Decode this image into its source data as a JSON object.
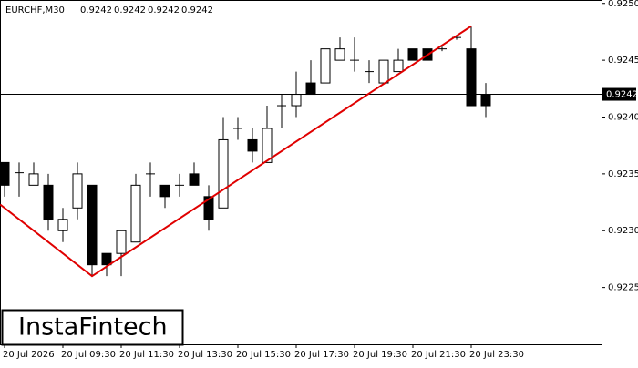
{
  "chart_data": {
    "type": "candlestick",
    "title": "EURCHF,M30",
    "header_values": [
      "0.9242",
      "0.9242",
      "0.9242",
      "0.9242"
    ],
    "brand": "InstaFintech",
    "categories": [
      "20 Jul 2026",
      null,
      null,
      null,
      "20 Jul 09:30",
      null,
      null,
      null,
      "20 Jul 11:30",
      null,
      null,
      null,
      "20 Jul 13:30",
      null,
      null,
      null,
      "20 Jul 15:30",
      null,
      null,
      null,
      "20 Jul 17:30",
      null,
      null,
      null,
      "20 Jul 19:30",
      null,
      null,
      null,
      "20 Jul 21:30",
      null,
      null,
      null,
      "20 Jul 23:30",
      null
    ],
    "open": [
      0.9236,
      0.92351,
      0.9234,
      0.9234,
      0.923,
      0.9232,
      0.9234,
      0.9228,
      0.9228,
      0.9229,
      0.9235,
      0.9234,
      0.9234,
      0.9235,
      0.9233,
      0.9232,
      0.9239,
      0.9238,
      0.9236,
      0.9241,
      0.9241,
      0.9243,
      0.9243,
      0.9245,
      0.9245,
      0.9244,
      0.9243,
      0.9244,
      0.9246,
      0.9246,
      0.9246,
      0.9247,
      0.9246,
      0.9242
    ],
    "high": [
      0.9236,
      0.9236,
      0.9236,
      0.9235,
      0.9232,
      0.9236,
      0.9234,
      0.9228,
      0.923,
      0.9235,
      0.9236,
      0.9234,
      0.9235,
      0.9236,
      0.9234,
      0.924,
      0.924,
      0.9239,
      0.9241,
      0.9242,
      0.9244,
      0.9245,
      0.9246,
      0.9247,
      0.9247,
      0.9245,
      0.9245,
      0.9246,
      0.9246,
      0.9246,
      0.92462,
      0.92472,
      0.9248,
      0.9243
    ],
    "low": [
      0.9233,
      0.9233,
      0.9234,
      0.923,
      0.9229,
      0.9231,
      0.9226,
      0.9226,
      0.9226,
      0.9229,
      0.9233,
      0.9232,
      0.9233,
      0.9234,
      0.923,
      0.9232,
      0.9238,
      0.9236,
      0.9236,
      0.9239,
      0.924,
      0.9242,
      0.9243,
      0.9245,
      0.9244,
      0.9243,
      0.9243,
      0.9244,
      0.9245,
      0.9245,
      0.92458,
      0.92468,
      0.9241,
      0.924
    ],
    "close": [
      0.9234,
      0.92351,
      0.9235,
      0.9231,
      0.9231,
      0.9235,
      0.9227,
      0.9227,
      0.923,
      0.9234,
      0.92351,
      0.9233,
      0.9234,
      0.9234,
      0.9231,
      0.9238,
      0.9239,
      0.9237,
      0.9239,
      0.9241,
      0.9242,
      0.9242,
      0.9246,
      0.9246,
      0.9245,
      0.9244,
      0.9245,
      0.9245,
      0.9245,
      0.9245,
      0.9246,
      0.9247,
      0.9241,
      0.9241
    ],
    "up_color": "#ffffff",
    "down_color": "#000000",
    "current_price": 0.9242,
    "pattern_line": {
      "color": "#e00000",
      "x": [
        -0.3,
        6,
        32
      ],
      "values": [
        0.92323,
        0.9226,
        0.9248
      ]
    },
    "ylim": [
      0.922,
      0.92503
    ],
    "yticks": [
      {
        "value": 0.925,
        "label": "0.9250"
      },
      0.9245,
      {
        "value": 0.924,
        "label": "0.9240"
      },
      0.9235,
      {
        "value": 0.923,
        "label": "0.9230"
      },
      0.9225
    ]
  }
}
